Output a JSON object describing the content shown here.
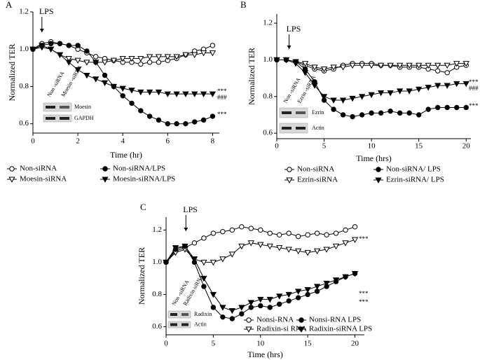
{
  "chart_data": [
    {
      "type": "line",
      "panel": "A",
      "xlabel": "Time (hr)",
      "ylabel": "Normalized TER",
      "lps": {
        "label": "LPS",
        "x": 0.4
      },
      "annotations": [
        "***",
        "###",
        "***"
      ],
      "inset": {
        "lanes": [
          "Non -siRNA",
          "Moesin -siRNA"
        ],
        "bands": [
          "Moesin",
          "GAPDH"
        ]
      },
      "xlim": [
        0,
        8.3
      ],
      "xticks": [
        0,
        2,
        4,
        6,
        8
      ],
      "ylim": [
        0.55,
        1.2
      ],
      "yticks": [
        {
          "value": 0.6,
          "label": "0.6"
        },
        {
          "value": 0.8,
          "label": "0.8"
        },
        {
          "value": 1,
          "label": "1.0"
        },
        {
          "value": 1.2,
          "label": "1.2"
        }
      ],
      "x": [
        0,
        0.4,
        0.8,
        1.2,
        1.6,
        2,
        2.4,
        2.8,
        3.2,
        3.6,
        4,
        4.4,
        4.8,
        5.2,
        5.6,
        6,
        6.4,
        6.8,
        7.2,
        7.6,
        8
      ],
      "series": [
        {
          "name": "Non-siRNA",
          "color": "#000000",
          "marker": "circle-open",
          "values": [
            1.0,
            1.03,
            1.04,
            1.03,
            1.02,
            1.0,
            0.98,
            0.96,
            0.95,
            0.94,
            0.93,
            0.93,
            0.92,
            0.93,
            0.93,
            0.94,
            0.95,
            0.97,
            0.99,
            1.0,
            1.02
          ]
        },
        {
          "name": "Moesin-siRNA",
          "color": "#000000",
          "marker": "triangle-open",
          "values": [
            1.0,
            1.02,
            1.0,
            0.97,
            0.95,
            0.94,
            0.93,
            0.93,
            0.93,
            0.94,
            0.95,
            0.95,
            0.95,
            0.96,
            0.96,
            0.96,
            0.96,
            0.97,
            0.97,
            0.98,
            0.98
          ]
        },
        {
          "name": "Non-siRNA/LPS",
          "color": "#000000",
          "marker": "circle",
          "values": [
            1.0,
            1.02,
            1.03,
            1.03,
            1.02,
            1.02,
            0.99,
            0.93,
            0.86,
            0.8,
            0.75,
            0.71,
            0.67,
            0.64,
            0.62,
            0.6,
            0.6,
            0.6,
            0.61,
            0.62,
            0.64
          ]
        },
        {
          "name": "Moesin-siRNA/LPS",
          "color": "#000000",
          "marker": "triangle",
          "values": [
            1.0,
            1.01,
            1.0,
            0.97,
            0.93,
            0.89,
            0.86,
            0.84,
            0.82,
            0.8,
            0.79,
            0.78,
            0.77,
            0.77,
            0.77,
            0.76,
            0.76,
            0.76,
            0.76,
            0.76,
            0.76
          ]
        }
      ]
    },
    {
      "type": "line",
      "panel": "B",
      "xlabel": "Time (hrs)",
      "ylabel": "Normalized TER",
      "lps": {
        "label": "LPS",
        "x": 1.3
      },
      "annotations": [
        "***",
        "###",
        "***"
      ],
      "inset": {
        "lanes": [
          "Non -siRNA",
          "Ezrin -siRNA"
        ],
        "bands": [
          "Ezrin",
          "Actin"
        ]
      },
      "xlim": [
        0,
        20.5
      ],
      "xticks": [
        0,
        5,
        10,
        15,
        20
      ],
      "ylim": [
        0.57,
        1.25
      ],
      "yticks": [
        {
          "value": 0.6,
          "label": "0.6"
        },
        {
          "value": 0.8,
          "label": "0.8"
        },
        {
          "value": 1,
          "label": "1.0"
        },
        {
          "value": 1.2,
          "label": "1.2"
        }
      ],
      "x": [
        0,
        1,
        2,
        3,
        4,
        5,
        6,
        7,
        8,
        9,
        10,
        11,
        12,
        13,
        14,
        15,
        16,
        17,
        18,
        19,
        20
      ],
      "series": [
        {
          "name": "Non-siRNA",
          "color": "#000000",
          "marker": "circle-open",
          "values": [
            1.0,
            1.0,
            0.99,
            0.97,
            0.95,
            0.94,
            0.95,
            0.97,
            0.98,
            0.98,
            0.98,
            0.97,
            0.97,
            0.96,
            0.96,
            0.96,
            0.95,
            0.94,
            0.93,
            0.96,
            0.97
          ]
        },
        {
          "name": "Ezrin-siRNA",
          "color": "#000000",
          "marker": "triangle-open",
          "values": [
            1.0,
            1.0,
            0.99,
            0.98,
            0.96,
            0.95,
            0.96,
            0.96,
            0.97,
            0.97,
            0.97,
            0.97,
            0.97,
            0.97,
            0.97,
            0.97,
            0.97,
            0.97,
            0.97,
            0.98,
            0.98
          ]
        },
        {
          "name": "Non-siRNA/ LPS",
          "color": "#000000",
          "marker": "circle",
          "values": [
            1.0,
            1.0,
            0.99,
            0.95,
            0.88,
            0.78,
            0.73,
            0.7,
            0.69,
            0.7,
            0.71,
            0.71,
            0.72,
            0.71,
            0.71,
            0.7,
            0.73,
            0.74,
            0.74,
            0.74,
            0.74
          ]
        },
        {
          "name": "Ezrin-siRNA/ LPS",
          "color": "#000000",
          "marker": "triangle",
          "values": [
            1.0,
            1.0,
            0.98,
            0.93,
            0.86,
            0.8,
            0.78,
            0.78,
            0.79,
            0.8,
            0.81,
            0.82,
            0.82,
            0.83,
            0.83,
            0.84,
            0.85,
            0.86,
            0.86,
            0.87,
            0.87
          ]
        }
      ]
    },
    {
      "type": "line",
      "panel": "C",
      "xlabel": "Time (hrs)",
      "ylabel": "Normalized TER",
      "lps": {
        "label": "LPS",
        "x": 2.1
      },
      "annotations": [
        "***",
        "***",
        "***"
      ],
      "inset": {
        "lanes": [
          "Non -siRNA",
          "Radixin siRNA"
        ],
        "bands": [
          "Radixin",
          "Actin"
        ]
      },
      "xlim": [
        0,
        21
      ],
      "xticks": [
        0,
        5,
        10,
        15,
        20
      ],
      "ylim": [
        0.55,
        1.28
      ],
      "yticks": [
        {
          "value": 0.6,
          "label": "0.6"
        },
        {
          "value": 0.8,
          "label": "0.8"
        },
        {
          "value": 1,
          "label": "1.0"
        },
        {
          "value": 1.2,
          "label": "1.2"
        }
      ],
      "x": [
        0,
        1,
        2,
        3,
        4,
        5,
        6,
        7,
        8,
        9,
        10,
        11,
        12,
        13,
        14,
        15,
        16,
        17,
        18,
        19,
        20
      ],
      "series": [
        {
          "name": "Nonsi-RNA",
          "color": "#000000",
          "marker": "circle-open",
          "values": [
            1.0,
            1.07,
            1.09,
            1.12,
            1.15,
            1.18,
            1.19,
            1.2,
            1.22,
            1.21,
            1.2,
            1.18,
            1.17,
            1.18,
            1.16,
            1.17,
            1.18,
            1.17,
            1.18,
            1.2,
            1.22
          ]
        },
        {
          "name": "Radixin-si RNA",
          "color": "#000000",
          "marker": "triangle-open",
          "values": [
            1.0,
            1.06,
            1.08,
            1.02,
            1.0,
            1.0,
            1.02,
            1.05,
            1.1,
            1.12,
            1.11,
            1.1,
            1.09,
            1.08,
            1.07,
            1.06,
            1.07,
            1.08,
            1.1,
            1.12,
            1.14
          ]
        },
        {
          "name": "Nonsi-RNA LPS",
          "color": "#000000",
          "marker": "circle",
          "values": [
            1.0,
            1.08,
            1.1,
            1.0,
            0.85,
            0.72,
            0.66,
            0.65,
            0.68,
            0.72,
            0.73,
            0.72,
            0.74,
            0.76,
            0.78,
            0.8,
            0.82,
            0.85,
            0.88,
            0.91,
            0.93
          ]
        },
        {
          "name": "Radixin-siRNA LPS",
          "color": "#000000",
          "marker": "triangle",
          "values": [
            1.0,
            1.09,
            1.1,
            1.02,
            0.9,
            0.8,
            0.72,
            0.7,
            0.72,
            0.75,
            0.77,
            0.77,
            0.79,
            0.8,
            0.82,
            0.83,
            0.85,
            0.87,
            0.89,
            0.91,
            0.93
          ]
        }
      ]
    }
  ]
}
